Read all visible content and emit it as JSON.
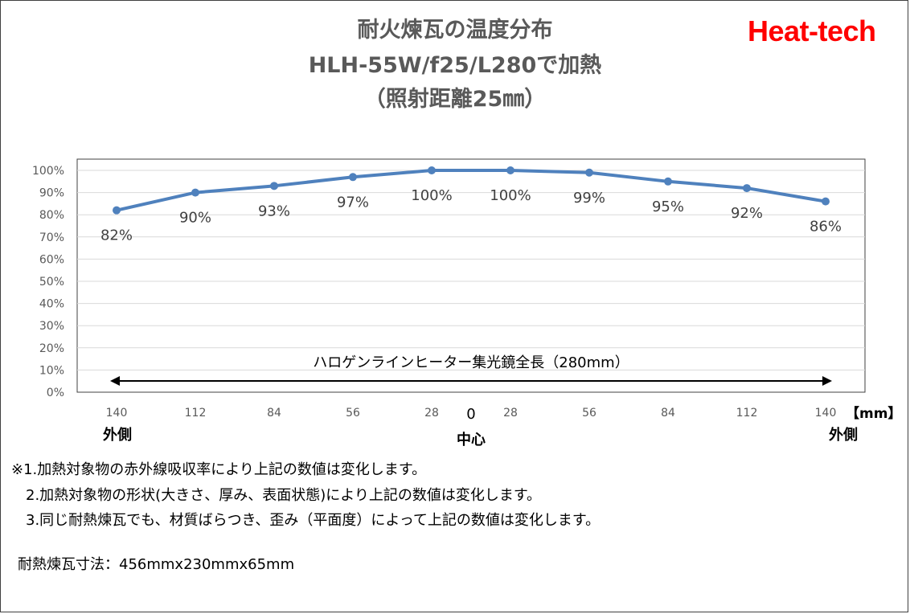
{
  "brand": "Heat-tech",
  "title_lines": [
    "耐火煉瓦の温度分布",
    "HLH-55W/f25/L280で加熱",
    "（照射距離25㎜）"
  ],
  "colors": {
    "line": "#4f81bd",
    "brand": "#ff0000",
    "title": "#595959"
  },
  "chart_data": {
    "type": "line",
    "categories": [
      "140",
      "112",
      "84",
      "56",
      "28",
      "28",
      "56",
      "84",
      "112",
      "140"
    ],
    "values": [
      0.82,
      0.9,
      0.93,
      0.97,
      1.0,
      1.0,
      0.99,
      0.95,
      0.92,
      0.86
    ],
    "data_labels": [
      "82%",
      "90%",
      "93%",
      "97%",
      "100%",
      "100%",
      "99%",
      "95%",
      "92%",
      "86%"
    ],
    "y_ticks": [
      "0%",
      "10%",
      "20%",
      "30%",
      "40%",
      "50%",
      "60%",
      "70%",
      "80%",
      "90%",
      "100%"
    ],
    "ylim": [
      0,
      1
    ],
    "grid": true,
    "x_unit": "【mm】",
    "center_tick": "0",
    "center_label": "中心",
    "left_label": "外側",
    "right_label": "外側",
    "annotation": "ハロゲンラインヒーター集光鏡全長（280mm）"
  },
  "notes": [
    "※1.加熱対象物の赤外線吸収率により上記の数値は変化します。",
    "　2.加熱対象物の形状(大きさ、厚み、表面状態)により上記の数値は変化します。",
    "　3.同じ耐熱煉瓦でも、材質ばらつき、歪み（平面度）によって上記の数値は変化します。"
  ],
  "dimensions": "耐熱煉瓦寸法：456mmx230mmx65mm"
}
